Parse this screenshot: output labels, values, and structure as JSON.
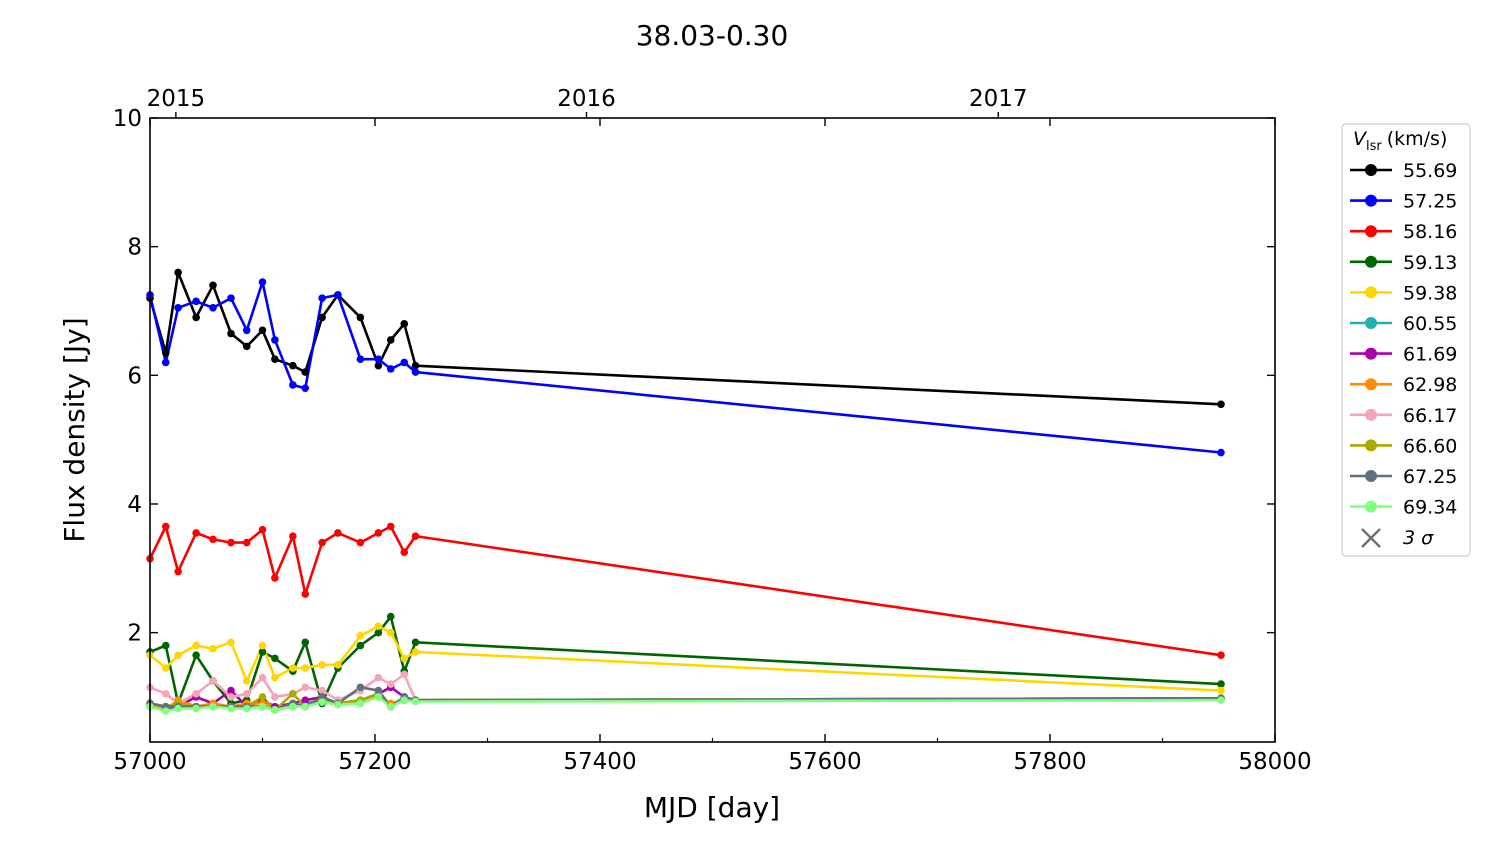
{
  "chart_data": {
    "type": "line",
    "title": "38.03-0.30",
    "xlabel": "MJD [day]",
    "ylabel": "Flux density [Jy]",
    "xlim": [
      57000,
      58000
    ],
    "ylim": [
      0.3,
      10
    ],
    "grid": false,
    "legend_position": "outside-right",
    "x_ticks": [
      57000,
      57200,
      57400,
      57600,
      57800,
      58000
    ],
    "y_ticks": [
      2,
      4,
      6,
      8,
      10
    ],
    "top_axis": {
      "ticks": [
        {
          "label": "2015",
          "mjd": 57023
        },
        {
          "label": "2016",
          "mjd": 57388
        },
        {
          "label": "2017",
          "mjd": 57754
        }
      ]
    },
    "legend_title_symbol": "V",
    "legend_title_subscript": "lsr",
    "legend_title_unit": "(km/s)",
    "legend_sigma_label": "3 σ",
    "x": [
      57000,
      57014,
      57025,
      57041,
      57056,
      57072,
      57086,
      57100,
      57111,
      57127,
      57138,
      57153,
      57167,
      57187,
      57203,
      57214,
      57226,
      57236,
      57952
    ],
    "series": [
      {
        "name": "55.69",
        "color": "#000000",
        "values": [
          7.2,
          6.35,
          7.6,
          6.9,
          7.4,
          6.65,
          6.45,
          6.7,
          6.25,
          6.15,
          6.05,
          6.9,
          7.25,
          6.9,
          6.15,
          6.55,
          6.8,
          6.15,
          5.55
        ]
      },
      {
        "name": "57.25",
        "color": "#0000ff",
        "values": [
          7.25,
          6.2,
          7.05,
          7.15,
          7.05,
          7.2,
          6.7,
          7.45,
          6.55,
          5.85,
          5.8,
          7.2,
          7.25,
          6.25,
          6.25,
          6.1,
          6.2,
          6.05,
          4.8
        ]
      },
      {
        "name": "58.16",
        "color": "#ff0000",
        "values": [
          3.15,
          3.65,
          2.95,
          3.55,
          3.45,
          3.4,
          3.4,
          3.6,
          2.85,
          3.5,
          2.6,
          3.4,
          3.55,
          3.4,
          3.55,
          3.65,
          3.25,
          3.5,
          1.65
        ]
      },
      {
        "name": "59.13",
        "color": "#006400",
        "values": [
          1.7,
          1.8,
          0.9,
          1.65,
          1.25,
          0.9,
          0.95,
          1.7,
          1.6,
          1.4,
          1.85,
          0.9,
          1.45,
          1.8,
          2.0,
          2.25,
          1.4,
          1.85,
          1.2
        ]
      },
      {
        "name": "59.38",
        "color": "#ffd700",
        "values": [
          1.65,
          1.45,
          1.65,
          1.8,
          1.75,
          1.85,
          1.25,
          1.8,
          1.3,
          1.45,
          1.45,
          1.5,
          1.5,
          1.95,
          2.1,
          2.0,
          1.6,
          1.7,
          1.1
        ]
      },
      {
        "name": "60.55",
        "color": "#20b2aa",
        "values": [
          0.9,
          0.85,
          0.85,
          0.85,
          0.85,
          0.85,
          0.85,
          0.85,
          0.8,
          0.85,
          0.9,
          0.95,
          0.9,
          0.95,
          1.05,
          0.85,
          1.0,
          0.95,
          0.98
        ]
      },
      {
        "name": "61.69",
        "color": "#aa00aa",
        "values": [
          0.85,
          0.8,
          0.85,
          1.0,
          0.9,
          1.1,
          0.85,
          0.95,
          0.85,
          0.9,
          0.95,
          1.0,
          0.9,
          0.95,
          1.05,
          1.15,
          1.0,
          0.95,
          0.97
        ]
      },
      {
        "name": "62.98",
        "color": "#ff8c00",
        "values": [
          0.9,
          0.8,
          0.95,
          0.85,
          0.9,
          0.85,
          0.9,
          0.9,
          0.8,
          0.9,
          0.85,
          0.95,
          0.9,
          0.95,
          1.0,
          0.9,
          0.95,
          0.95,
          0.98
        ]
      },
      {
        "name": "66.17",
        "color": "#f4a6b8",
        "values": [
          1.15,
          1.05,
          0.9,
          1.05,
          1.25,
          1.0,
          1.05,
          1.3,
          1.0,
          1.05,
          1.15,
          1.1,
          0.95,
          1.1,
          1.3,
          1.2,
          1.35,
          0.95,
          0.98
        ]
      },
      {
        "name": "66.60",
        "color": "#aaaa00",
        "values": [
          0.9,
          0.85,
          0.9,
          0.85,
          0.85,
          0.85,
          0.85,
          1.0,
          0.8,
          1.05,
          0.85,
          0.95,
          0.9,
          0.95,
          1.05,
          0.85,
          0.95,
          0.95,
          0.98
        ]
      },
      {
        "name": "67.25",
        "color": "#607080",
        "values": [
          0.9,
          0.85,
          0.85,
          0.85,
          0.85,
          0.85,
          0.85,
          0.85,
          0.8,
          0.9,
          0.85,
          1.0,
          0.9,
          1.15,
          1.1,
          0.85,
          1.0,
          0.95,
          0.98
        ]
      },
      {
        "name": "69.34",
        "color": "#80ff80",
        "values": [
          0.85,
          0.78,
          0.82,
          0.82,
          0.85,
          0.82,
          0.82,
          0.85,
          0.8,
          0.85,
          0.85,
          0.92,
          0.88,
          0.9,
          1.0,
          0.85,
          0.95,
          0.93,
          0.95
        ]
      }
    ]
  }
}
